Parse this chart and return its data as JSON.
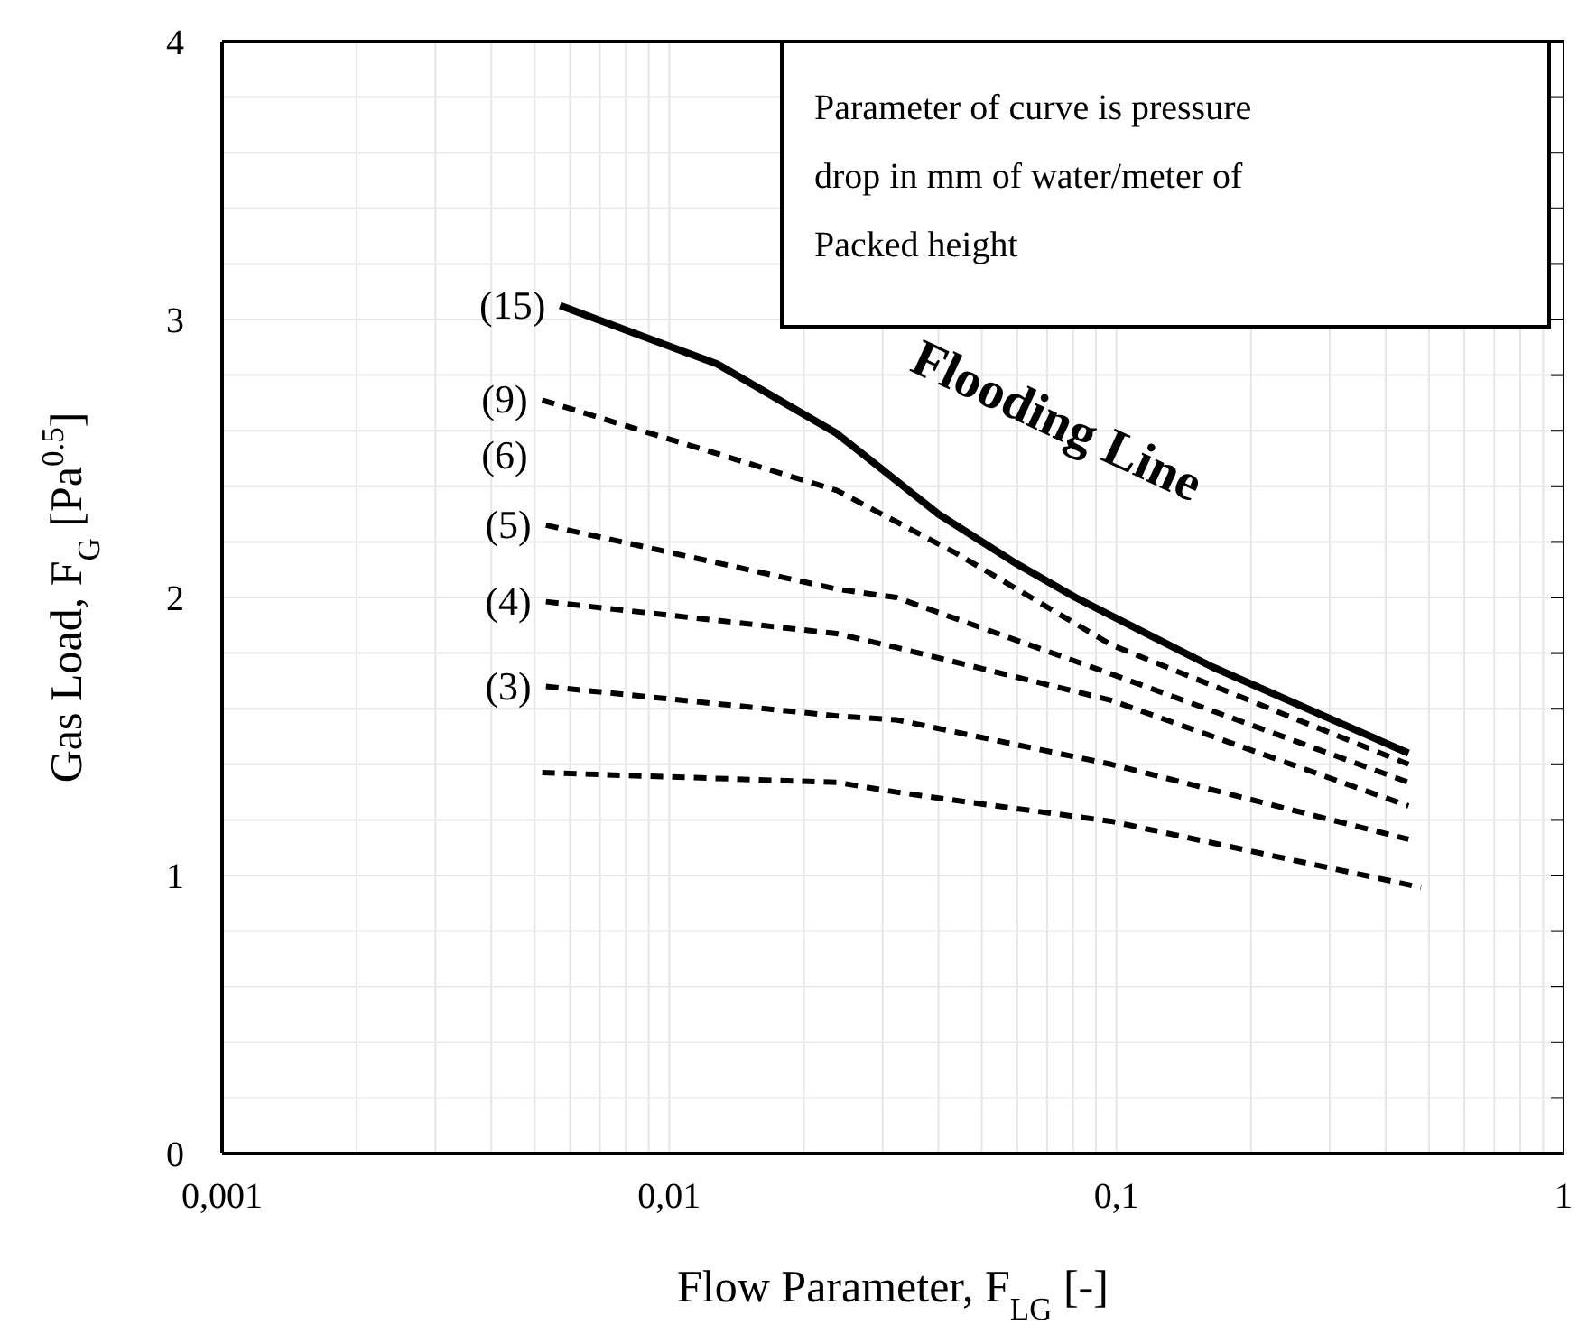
{
  "chart_data": {
    "type": "line",
    "xlabel": "Flow Parameter, F$_{LG}$ [-]",
    "ylabel": "Gas Load, F$_{G}$ [Pa$^{0.5}$]",
    "log": "x",
    "xlim": [
      0.001,
      1
    ],
    "ylim": [
      0,
      4
    ],
    "xticks": [
      {
        "value": 0.001,
        "label": "0,001"
      },
      {
        "value": 0.002,
        "label": null
      },
      {
        "value": 0.003,
        "label": null
      },
      {
        "value": 0.004,
        "label": null
      },
      {
        "value": 0.005,
        "label": null
      },
      {
        "value": 0.006,
        "label": null
      },
      {
        "value": 0.007,
        "label": null
      },
      {
        "value": 0.008,
        "label": null
      },
      {
        "value": 0.009,
        "label": null
      },
      {
        "value": 0.01,
        "label": "0,01"
      },
      {
        "value": 0.02,
        "label": null
      },
      {
        "value": 0.03,
        "label": null
      },
      {
        "value": 0.04,
        "label": null
      },
      {
        "value": 0.05,
        "label": null
      },
      {
        "value": 0.06,
        "label": null
      },
      {
        "value": 0.07,
        "label": null
      },
      {
        "value": 0.08,
        "label": null
      },
      {
        "value": 0.09,
        "label": null
      },
      {
        "value": 0.1,
        "label": "0,1"
      },
      {
        "value": 0.2,
        "label": null
      },
      {
        "value": 0.3,
        "label": null
      },
      {
        "value": 0.4,
        "label": null
      },
      {
        "value": 0.5,
        "label": null
      },
      {
        "value": 0.6,
        "label": null
      },
      {
        "value": 0.7,
        "label": null
      },
      {
        "value": 0.8,
        "label": null
      },
      {
        "value": 0.9,
        "label": null
      },
      {
        "value": 1,
        "label": "1"
      }
    ],
    "yticks": [
      0,
      {
        "value": 0.2,
        "label": null
      },
      {
        "value": 0.4,
        "label": null
      },
      {
        "value": 0.6,
        "label": null
      },
      {
        "value": 0.8,
        "label": null
      },
      1,
      {
        "value": 1.2,
        "label": null
      },
      {
        "value": 1.4,
        "label": null
      },
      {
        "value": 1.6,
        "label": null
      },
      {
        "value": 1.8,
        "label": null
      },
      2,
      {
        "value": 2.2,
        "label": null
      },
      {
        "value": 2.4,
        "label": null
      },
      {
        "value": 2.6,
        "label": null
      },
      {
        "value": 2.8,
        "label": null
      },
      3,
      {
        "value": 3.2,
        "label": null
      },
      {
        "value": 3.4,
        "label": null
      },
      {
        "value": 3.6,
        "label": null
      },
      {
        "value": 3.8,
        "label": null
      },
      4
    ],
    "grid": true,
    "marker": "none",
    "series": [
      {
        "color": "#000000",
        "line_style": "solid",
        "x": [
          0.0057,
          0.0128,
          0.0237,
          0.04,
          0.06,
          0.081,
          0.164,
          0.45
        ],
        "values": [
          3.05,
          2.84,
          2.59,
          2.3,
          2.12,
          2.0,
          1.75,
          1.44
        ]
      },
      {
        "color": "#000000",
        "line_style": "dashed",
        "x": [
          0.0052,
          0.0237,
          0.0437,
          0.0973,
          0.45
        ],
        "values": [
          2.71,
          2.385,
          2.16,
          1.83,
          1.4
        ]
      },
      {
        "color": "#000000",
        "line_style": "dashed",
        "x": [
          0.0053,
          0.0237,
          0.0322,
          0.0973,
          0.45
        ],
        "values": [
          2.26,
          2.03,
          2.0,
          1.725,
          1.335
        ]
      },
      {
        "color": "#000000",
        "line_style": "dashed",
        "x": [
          0.0053,
          0.0237,
          0.0322,
          0.0973,
          0.45
        ],
        "values": [
          1.985,
          1.87,
          1.82,
          1.63,
          1.25
        ]
      },
      {
        "color": "#000000",
        "line_style": "dashed",
        "x": [
          0.0053,
          0.0237,
          0.0322,
          0.0973,
          0.45
        ],
        "values": [
          1.68,
          1.574,
          1.56,
          1.4,
          1.13
        ]
      },
      {
        "color": "#000000",
        "line_style": "dashed",
        "x": [
          0.0052,
          0.0237,
          0.0322,
          0.0437,
          0.0973,
          0.48
        ],
        "values": [
          1.37,
          1.335,
          1.3,
          1.27,
          1.195,
          0.957
        ]
      }
    ],
    "annotations": [
      "Parameter of curve is pressure drop in mm of water/meter of Packed height",
      "Flooding Line",
      {
        "text": "(15)",
        "x": 0.0057,
        "y": 3.05
      },
      {
        "text": "(9)",
        "x": 0.0052,
        "y": 2.71
      },
      "(6)",
      {
        "text": "(5)",
        "x": 0.0053,
        "y": 2.26
      },
      {
        "text": "(4)",
        "x": 0.0053,
        "y": 1.985
      },
      {
        "text": "(3)",
        "x": 0.0053,
        "y": 1.68
      }
    ]
  }
}
